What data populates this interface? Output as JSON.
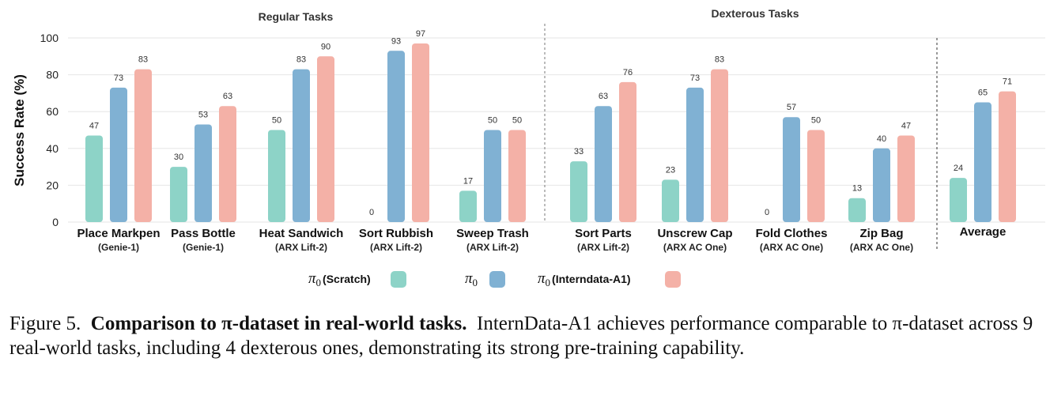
{
  "chart_data": {
    "type": "bar",
    "ylabel": "Success Rate (%)",
    "ylim": [
      0,
      100
    ],
    "yticks": [
      "0",
      "20",
      "40",
      "60",
      "80",
      "100"
    ],
    "grid": true,
    "group_titles": {
      "regular": "Regular Tasks",
      "dexterous": "Dexterous Tasks"
    },
    "categories": [
      {
        "name": "Place Markpen",
        "robot": "(Genie-1)"
      },
      {
        "name": "Pass Bottle",
        "robot": "(Genie-1)"
      },
      {
        "name": "Heat Sandwich",
        "robot": "(ARX Lift-2)"
      },
      {
        "name": "Sort Rubbish",
        "robot": "(ARX Lift-2)"
      },
      {
        "name": "Sweep Trash",
        "robot": "(ARX Lift-2)"
      },
      {
        "name": "Sort Parts",
        "robot": "(ARX Lift-2)"
      },
      {
        "name": "Unscrew Cap",
        "robot": "(ARX AC One)"
      },
      {
        "name": "Fold Clothes",
        "robot": "(ARX AC One)"
      },
      {
        "name": "Zip Bag",
        "robot": "(ARX AC One)"
      },
      {
        "name": "Average",
        "robot": ""
      }
    ],
    "series": [
      {
        "name": "π0 (Scratch)",
        "color": "#8dd3c7",
        "values": [
          47,
          30,
          50,
          0,
          17,
          33,
          23,
          0,
          13,
          24
        ]
      },
      {
        "name": "π0",
        "color": "#80b1d3",
        "values": [
          73,
          53,
          83,
          93,
          50,
          63,
          73,
          57,
          40,
          65
        ]
      },
      {
        "name": "π0 (Interndata-A1)",
        "color": "#f4b1a7",
        "values": [
          83,
          63,
          90,
          97,
          50,
          76,
          83,
          50,
          47,
          71
        ]
      }
    ],
    "legend": [
      {
        "symbol": "π",
        "sub": "0",
        "text": "(Scratch)",
        "color": "#8dd3c7"
      },
      {
        "symbol": "π",
        "sub": "0",
        "text": "",
        "color": "#80b1d3"
      },
      {
        "symbol": "π",
        "sub": "0",
        "text": "(Interndata-A1)",
        "color": "#f4b1a7"
      }
    ],
    "legend_position": "bottom-center"
  },
  "caption": {
    "label": "Figure 5.",
    "bold": "Comparison to π-dataset in real-world tasks.",
    "text": "InternData-A1 achieves performance comparable to π-dataset across 9 real-world tasks, including 4 dexterous ones, demonstrating its strong pre-training capability."
  }
}
